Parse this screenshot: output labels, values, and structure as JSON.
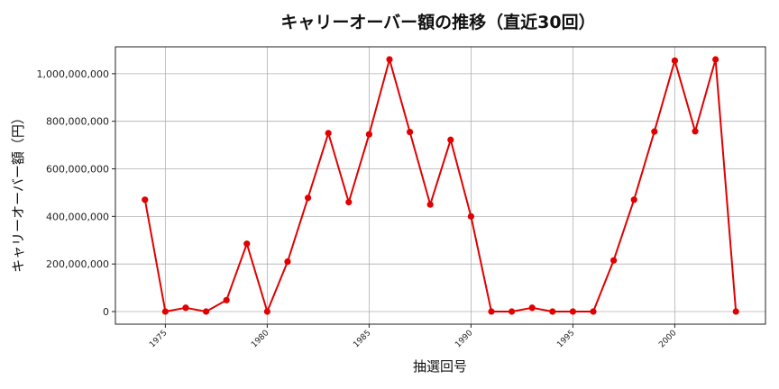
{
  "chart_data": {
    "type": "line",
    "title": "キャリーオーバー額の推移（直近30回）",
    "xlabel": "抽選回号",
    "ylabel": "キャリーオーバー額（円）",
    "x": [
      1974,
      1975,
      1976,
      1977,
      1978,
      1979,
      1980,
      1981,
      1982,
      1983,
      1984,
      1985,
      1986,
      1987,
      1988,
      1989,
      1990,
      1991,
      1992,
      1993,
      1994,
      1995,
      1996,
      1997,
      1998,
      1999,
      2000,
      2001,
      2002,
      2003
    ],
    "series": [
      {
        "color": "#e00000",
        "marker": "circle",
        "values": [
          470000000,
          0,
          16000000,
          0,
          48000000,
          285000000,
          0,
          210000000,
          478000000,
          750000000,
          460000000,
          745000000,
          1060000000,
          755000000,
          450000000,
          722000000,
          400000000,
          0,
          0,
          16000000,
          0,
          0,
          0,
          215000000,
          470000000,
          757000000,
          1055000000,
          758000000,
          1060000000,
          0
        ]
      }
    ],
    "xticks": [
      1975,
      1980,
      1985,
      1990,
      1995,
      2000
    ],
    "xtick_labels": [
      "1975",
      "1980",
      "1985",
      "1990",
      "1995",
      "2000"
    ],
    "yticks": [
      0,
      200000000,
      400000000,
      600000000,
      800000000,
      1000000000
    ],
    "ytick_labels": [
      "0",
      "200,000,000",
      "400,000,000",
      "600,000,000",
      "800,000,000",
      "1,000,000,000"
    ],
    "xlim": [
      1972.55,
      2004.45
    ],
    "ylim": [
      -53000000,
      1113000000
    ],
    "grid": true,
    "legend": "none"
  }
}
